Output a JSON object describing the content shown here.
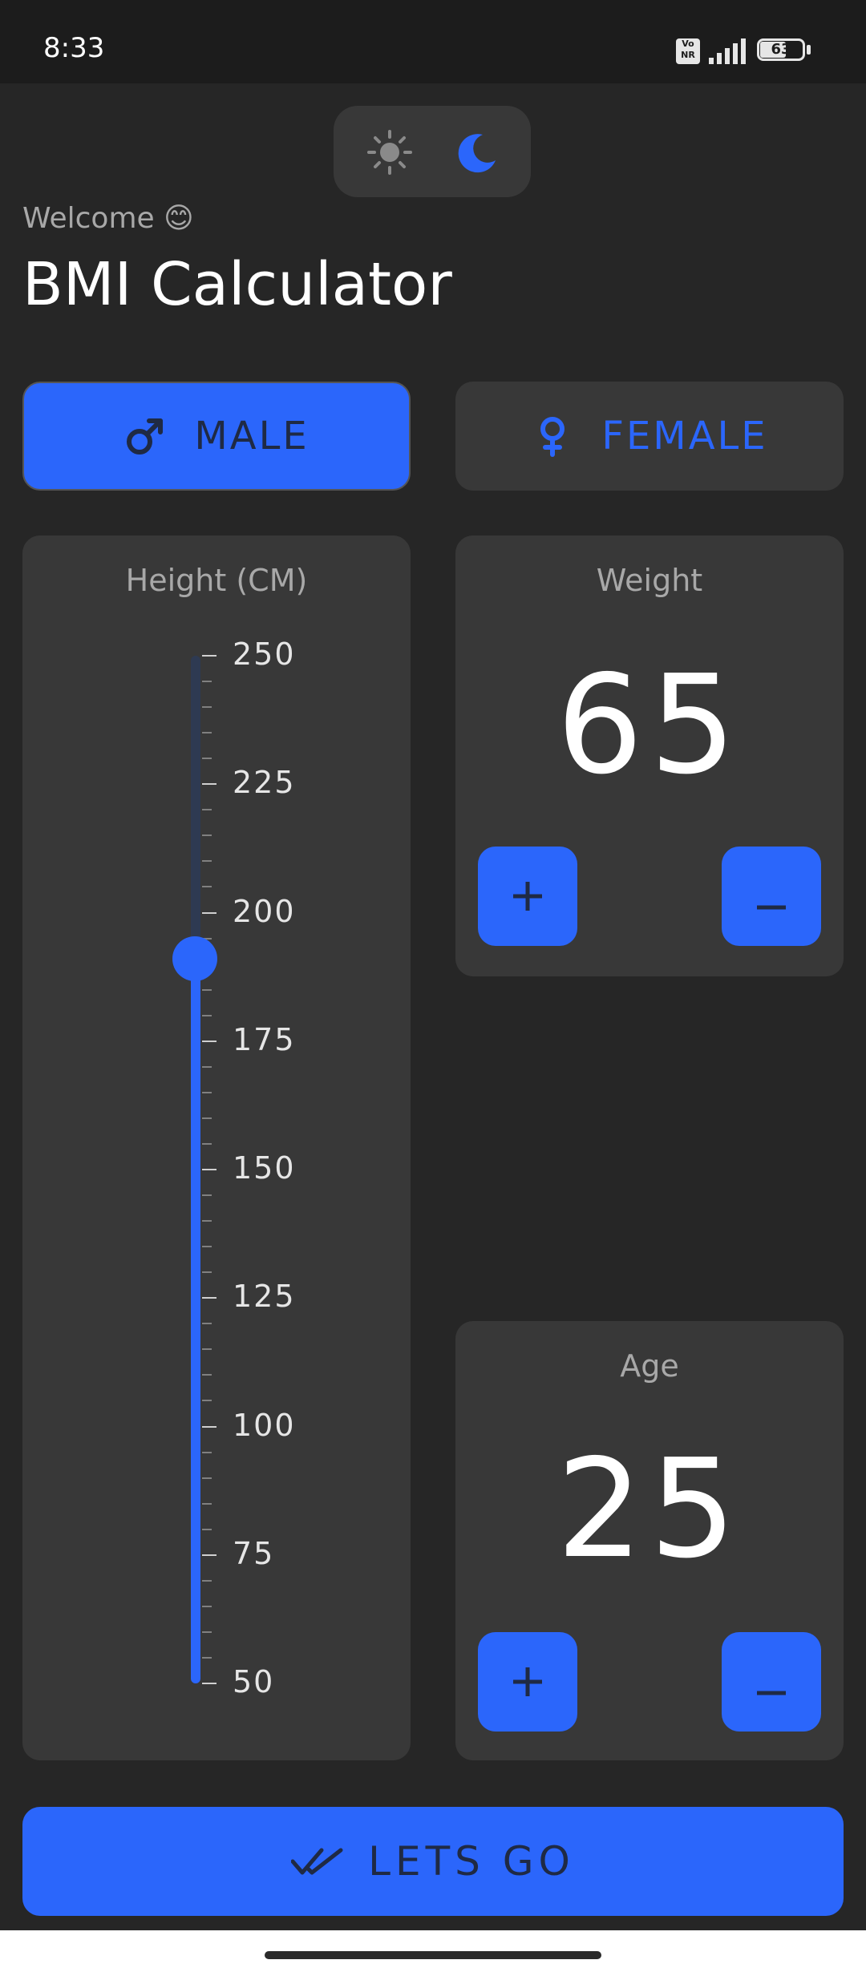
{
  "status": {
    "time": "8:33",
    "volte": "Vo NR",
    "battery": "63"
  },
  "theme": {
    "light_icon": "sun-icon",
    "dark_icon": "moon-icon",
    "selected": "dark"
  },
  "header": {
    "welcome": "Welcome 😊",
    "title": "BMI Calculator"
  },
  "gender": {
    "male_label": "MALE",
    "female_label": "FEMALE",
    "selected": "male"
  },
  "height": {
    "label": "Height (CM)",
    "min": 50,
    "max": 250,
    "value": 191,
    "tick_labels": [
      "250",
      "225",
      "200",
      "175",
      "150",
      "125",
      "100",
      "75",
      "50"
    ]
  },
  "weight": {
    "label": "Weight",
    "value": "65",
    "plus": "+",
    "minus": "_"
  },
  "age": {
    "label": "Age",
    "value": "25",
    "plus": "+",
    "minus": "_"
  },
  "actions": {
    "go_label": "LETS GO"
  },
  "colors": {
    "accent": "#2b66fb",
    "background": "#262626",
    "card": "#383838"
  }
}
